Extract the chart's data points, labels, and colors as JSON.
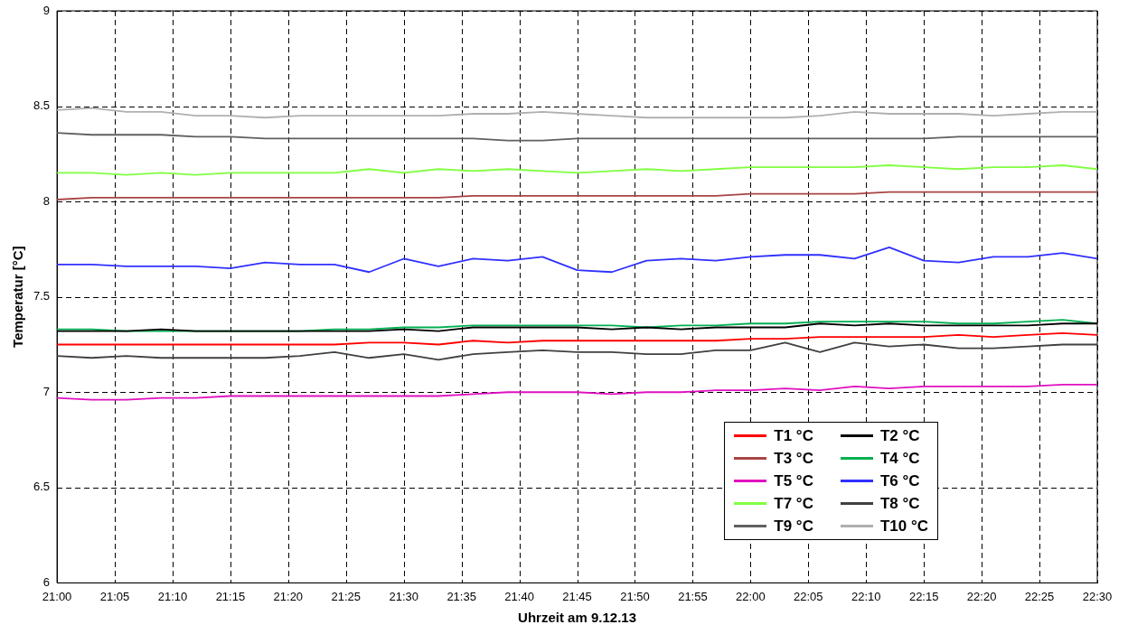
{
  "chart_data": {
    "type": "line",
    "xlabel": "Uhrzeit am 9.12.13",
    "ylabel": "Temperatur [°C]",
    "x": [
      21,
      21.05,
      21.1,
      21.15,
      21.2,
      21.25,
      21.3,
      21.35,
      21.4,
      21.45,
      21.5,
      21.55,
      21.6,
      21.65,
      21.7,
      21.75,
      21.8,
      21.85,
      21.9,
      21.95,
      22,
      22.05,
      22.1,
      22.15,
      22.2,
      22.25,
      22.3,
      22.35,
      22.4,
      22.45,
      22.5
    ],
    "series": [
      {
        "name": "T1 °C",
        "color": "#ff0000",
        "values": [
          7.25,
          7.25,
          7.25,
          7.25,
          7.25,
          7.25,
          7.25,
          7.25,
          7.25,
          7.26,
          7.26,
          7.25,
          7.27,
          7.26,
          7.27,
          7.27,
          7.27,
          7.27,
          7.27,
          7.27,
          7.28,
          7.28,
          7.29,
          7.29,
          7.29,
          7.29,
          7.3,
          7.29,
          7.3,
          7.31,
          7.3
        ]
      },
      {
        "name": "T2 °C",
        "color": "#000000",
        "values": [
          7.32,
          7.32,
          7.32,
          7.33,
          7.32,
          7.32,
          7.32,
          7.32,
          7.32,
          7.32,
          7.33,
          7.32,
          7.34,
          7.34,
          7.34,
          7.34,
          7.33,
          7.34,
          7.33,
          7.34,
          7.34,
          7.34,
          7.36,
          7.35,
          7.36,
          7.35,
          7.35,
          7.35,
          7.35,
          7.36,
          7.36
        ]
      },
      {
        "name": "T3 °C",
        "color": "#a84444",
        "values": [
          8.01,
          8.02,
          8.02,
          8.02,
          8.02,
          8.02,
          8.02,
          8.02,
          8.02,
          8.02,
          8.02,
          8.02,
          8.03,
          8.03,
          8.03,
          8.03,
          8.03,
          8.03,
          8.03,
          8.03,
          8.04,
          8.04,
          8.04,
          8.04,
          8.05,
          8.05,
          8.05,
          8.05,
          8.05,
          8.05,
          8.05
        ]
      },
      {
        "name": "T4 °C",
        "color": "#00b050",
        "values": [
          7.33,
          7.33,
          7.32,
          7.32,
          7.32,
          7.32,
          7.32,
          7.32,
          7.33,
          7.33,
          7.34,
          7.34,
          7.35,
          7.35,
          7.35,
          7.35,
          7.35,
          7.34,
          7.35,
          7.35,
          7.36,
          7.36,
          7.37,
          7.37,
          7.37,
          7.37,
          7.36,
          7.36,
          7.37,
          7.38,
          7.36
        ]
      },
      {
        "name": "T5 °C",
        "color": "#e010c0",
        "values": [
          6.97,
          6.96,
          6.96,
          6.97,
          6.97,
          6.98,
          6.98,
          6.98,
          6.98,
          6.98,
          6.98,
          6.98,
          6.99,
          7,
          7,
          7,
          6.99,
          7,
          7,
          7.01,
          7.01,
          7.02,
          7.01,
          7.03,
          7.02,
          7.03,
          7.03,
          7.03,
          7.03,
          7.04,
          7.04
        ]
      },
      {
        "name": "T6 °C",
        "color": "#3030ff",
        "values": [
          7.67,
          7.67,
          7.66,
          7.66,
          7.66,
          7.65,
          7.68,
          7.67,
          7.67,
          7.63,
          7.7,
          7.66,
          7.7,
          7.69,
          7.71,
          7.64,
          7.63,
          7.69,
          7.7,
          7.69,
          7.71,
          7.72,
          7.72,
          7.7,
          7.76,
          7.69,
          7.68,
          7.71,
          7.71,
          7.73,
          7.7
        ]
      },
      {
        "name": "T7 °C",
        "color": "#80ff40",
        "values": [
          8.15,
          8.15,
          8.14,
          8.15,
          8.14,
          8.15,
          8.15,
          8.15,
          8.15,
          8.17,
          8.15,
          8.17,
          8.16,
          8.17,
          8.16,
          8.15,
          8.16,
          8.17,
          8.16,
          8.17,
          8.18,
          8.18,
          8.18,
          8.18,
          8.19,
          8.18,
          8.17,
          8.18,
          8.18,
          8.19,
          8.17
        ]
      },
      {
        "name": "T8 °C",
        "color": "#404040",
        "values": [
          7.19,
          7.18,
          7.19,
          7.18,
          7.18,
          7.18,
          7.18,
          7.19,
          7.21,
          7.18,
          7.2,
          7.17,
          7.2,
          7.21,
          7.22,
          7.21,
          7.21,
          7.2,
          7.2,
          7.22,
          7.22,
          7.26,
          7.21,
          7.26,
          7.24,
          7.25,
          7.23,
          7.23,
          7.24,
          7.25,
          7.25
        ]
      },
      {
        "name": "T9 °C",
        "color": "#606060",
        "values": [
          8.36,
          8.35,
          8.35,
          8.35,
          8.34,
          8.34,
          8.33,
          8.33,
          8.33,
          8.33,
          8.33,
          8.33,
          8.33,
          8.32,
          8.32,
          8.33,
          8.33,
          8.33,
          8.33,
          8.33,
          8.33,
          8.33,
          8.33,
          8.33,
          8.33,
          8.33,
          8.34,
          8.34,
          8.34,
          8.34,
          8.34
        ]
      },
      {
        "name": "T10 °C",
        "color": "#b0b0b0",
        "values": [
          8.48,
          8.49,
          8.47,
          8.47,
          8.45,
          8.45,
          8.44,
          8.45,
          8.45,
          8.45,
          8.45,
          8.45,
          8.46,
          8.46,
          8.47,
          8.46,
          8.45,
          8.44,
          8.44,
          8.44,
          8.44,
          8.44,
          8.45,
          8.47,
          8.46,
          8.46,
          8.46,
          8.45,
          8.46,
          8.47,
          8.47
        ]
      }
    ],
    "xlim": [
      21,
      22.5
    ],
    "xticks": [
      {
        "value": 21,
        "label": "21:00"
      },
      {
        "value": 21.083333,
        "label": "21:05"
      },
      {
        "value": 21.166667,
        "label": "21:10"
      },
      {
        "value": 21.25,
        "label": "21:15"
      },
      {
        "value": 21.333333,
        "label": "21:20"
      },
      {
        "value": 21.416667,
        "label": "21:25"
      },
      {
        "value": 21.5,
        "label": "21:30"
      },
      {
        "value": 21.583333,
        "label": "21:35"
      },
      {
        "value": 21.666667,
        "label": "21:40"
      },
      {
        "value": 21.75,
        "label": "21:45"
      },
      {
        "value": 21.833333,
        "label": "21:50"
      },
      {
        "value": 21.916667,
        "label": "21:55"
      },
      {
        "value": 22,
        "label": "22:00"
      },
      {
        "value": 22.083333,
        "label": "22:05"
      },
      {
        "value": 22.166667,
        "label": "22:10"
      },
      {
        "value": 22.25,
        "label": "22:15"
      },
      {
        "value": 22.333333,
        "label": "22:20"
      },
      {
        "value": 22.416667,
        "label": "22:25"
      },
      {
        "value": 22.5,
        "label": "22:30"
      }
    ],
    "ylim": [
      6,
      9
    ],
    "yticks": [
      6,
      6.5,
      7,
      7.5,
      8,
      8.5,
      9
    ],
    "grid": true,
    "legend": "bottom right",
    "marker": "none",
    "line_style": "solid"
  }
}
